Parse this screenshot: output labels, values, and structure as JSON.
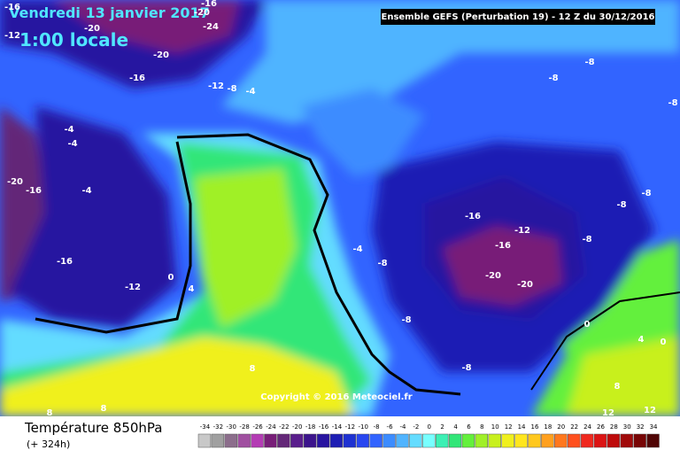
{
  "header": {
    "date": "Vendredi 13 janvier 2017",
    "time": "1:00 locale",
    "run": "Ensemble GEFS  (Perturbation 19)  -  12 Z du 30/12/2016"
  },
  "copyright": "Copyright © 2016 Meteociel.fr",
  "legend": {
    "title": "Température 850hPa",
    "lead": "(+ 324h)",
    "values": [
      -34,
      -32,
      -30,
      -28,
      -26,
      -24,
      -22,
      -20,
      -18,
      -16,
      -14,
      -12,
      -10,
      -8,
      -6,
      -4,
      -2,
      0,
      2,
      4,
      6,
      8,
      10,
      12,
      14,
      16,
      18,
      20,
      22,
      24,
      26,
      28,
      30,
      32,
      34
    ],
    "colors": [
      "#c8c8c8",
      "#a0a0a0",
      "#8c6e8c",
      "#a050a0",
      "#b43cb4",
      "#781e78",
      "#642878",
      "#5a1e8c",
      "#3c148c",
      "#2814a0",
      "#1e1eb4",
      "#1e32d2",
      "#2846f0",
      "#3264ff",
      "#3c8cff",
      "#50b4ff",
      "#64dcff",
      "#78ffff",
      "#3cf0b4",
      "#32e678",
      "#64f03c",
      "#a0f028",
      "#c8f01e",
      "#f0f01e",
      "#ffe61e",
      "#ffc81e",
      "#ffa01e",
      "#ff781e",
      "#ff501e",
      "#f0281e",
      "#dc1414",
      "#be0a0a",
      "#a00a0a",
      "#780505",
      "#500505"
    ]
  },
  "contour_labels": [
    -16,
    -16,
    -20,
    -20,
    -12,
    -24,
    -20,
    -16,
    -12,
    -8,
    -4,
    -8,
    -8,
    -8,
    -4,
    -4,
    -20,
    -16,
    -4,
    -16,
    -12,
    0,
    4,
    -4,
    -8,
    -16,
    -12,
    -16,
    -8,
    -8,
    -8,
    -20,
    -20,
    -8,
    0,
    4,
    0,
    8,
    -8,
    8,
    12,
    12,
    8,
    8
  ]
}
